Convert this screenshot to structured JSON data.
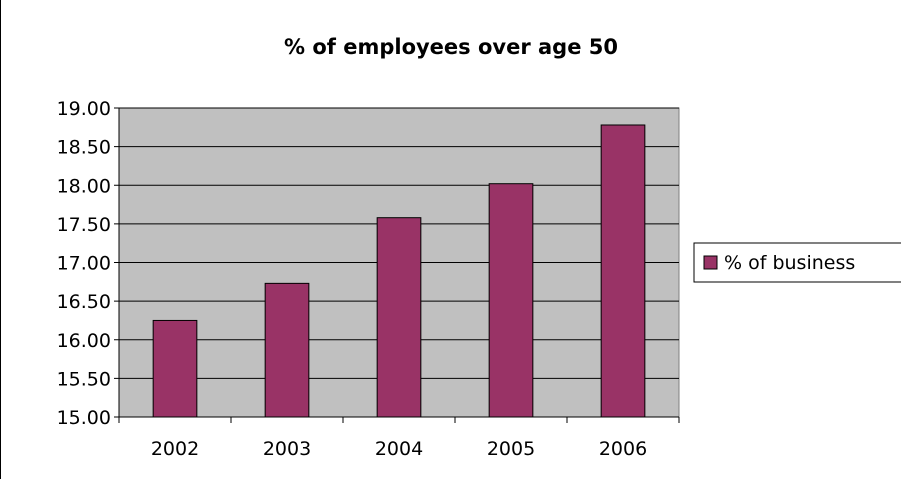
{
  "chart_data": {
    "type": "bar",
    "title": "% of employees over age 50",
    "xlabel": "",
    "ylabel": "",
    "categories": [
      "2002",
      "2003",
      "2004",
      "2005",
      "2006"
    ],
    "series": [
      {
        "name": "% of business",
        "values": [
          16.25,
          16.73,
          17.58,
          18.02,
          18.78
        ]
      }
    ],
    "ylim": [
      15.0,
      19.0
    ],
    "yticks": [
      "15.00",
      "15.50",
      "16.00",
      "16.50",
      "17.00",
      "17.50",
      "18.00",
      "18.50",
      "19.00"
    ],
    "grid": true,
    "legend_position": "right"
  },
  "colors": {
    "bar_fill": "#993366",
    "plot_background": "#c0c0c0",
    "gridline": "#000000"
  }
}
